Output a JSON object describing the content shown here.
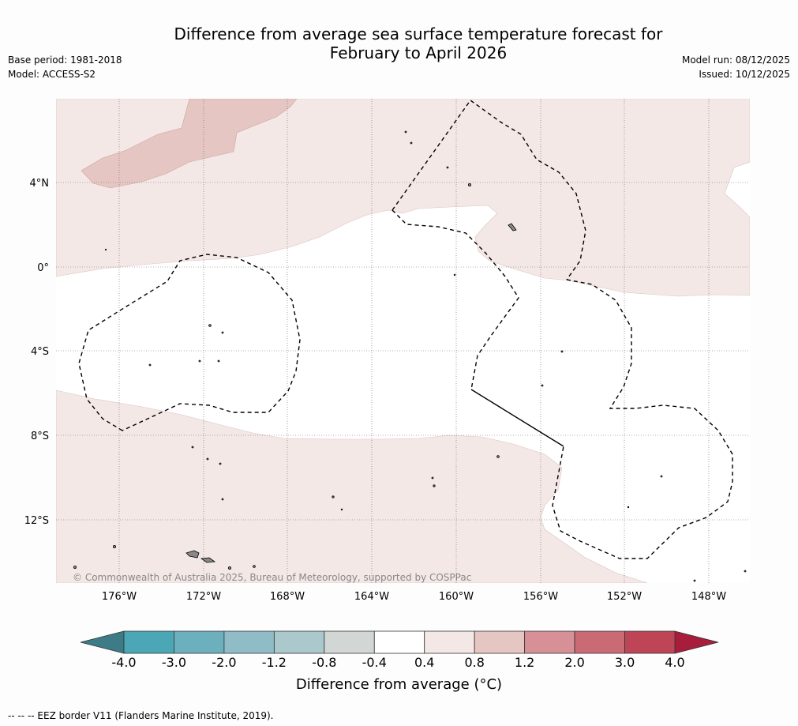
{
  "title_line1": "Difference from average sea surface temperature forecast for",
  "title_line2": "February to April 2026",
  "meta_left": {
    "base_period": "Base period: 1981-2018",
    "model": "Model: ACCESS-S2"
  },
  "meta_right": {
    "model_run": "Model run: 08/12/2025",
    "issued": "Issued: 10/12/2025"
  },
  "map": {
    "lon_ticks": [
      "176°W",
      "172°W",
      "168°W",
      "164°W",
      "160°W",
      "156°W",
      "152°W",
      "148°W"
    ],
    "lat_ticks": [
      "4°N",
      "0°",
      "4°S",
      "8°S",
      "12°S"
    ],
    "credit": "© Commonwealth of Australia 2025, Bureau of Meteorology, supported by COSPPac"
  },
  "colorbar": {
    "levels": [
      "-4.0",
      "-3.0",
      "-2.0",
      "-1.2",
      "-0.8",
      "-0.4",
      "0.4",
      "0.8",
      "1.2",
      "2.0",
      "3.0",
      "4.0"
    ],
    "colors": [
      "#4ba6b6",
      "#6cb0be",
      "#8fbcc6",
      "#abc8cc",
      "#d2d7d6",
      "#ffffff",
      "#f4e8e6",
      "#e6c6c2",
      "#d79096",
      "#c96a74",
      "#bd4556"
    ],
    "under_color": "#3d7c86",
    "over_color": "#a81d3c",
    "label": "Difference from average (°C)"
  },
  "footnote": "-- -- -- EEZ border V11 (Flanders Marine Institute, 2019)."
}
